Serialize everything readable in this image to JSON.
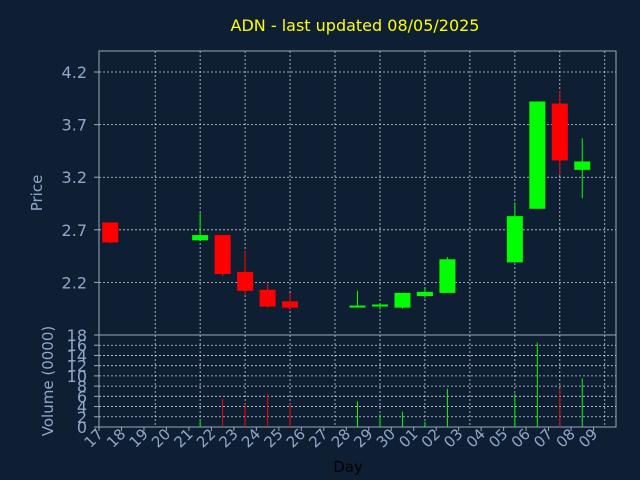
{
  "chart_data": {
    "type": "candlestick",
    "title": "ADN - last updated 08/05/2025",
    "xlabel": "Day",
    "price_panel": {
      "ylabel": "Price",
      "yticks": [
        "2.2",
        "2.7",
        "3.2",
        "3.7",
        "4.2"
      ],
      "ylim": [
        1.7,
        4.4
      ]
    },
    "volume_panel": {
      "ylabel": "Volume (0000)",
      "yticks": [
        "0",
        "2",
        "4",
        "6",
        "8",
        "10",
        "12",
        "14",
        "16",
        "18"
      ],
      "ylim": [
        0,
        18
      ]
    },
    "days": [
      "17",
      "18",
      "19",
      "20",
      "21",
      "22",
      "23",
      "24",
      "25",
      "26",
      "27",
      "28",
      "29",
      "30",
      "01",
      "02",
      "03",
      "04",
      "05",
      "06",
      "07",
      "08",
      "09"
    ],
    "grid": true,
    "colors": {
      "up": "#00ff00",
      "down": "#ff0000",
      "title": "#ffff00",
      "axis_text": "#8fa8c8",
      "background": "#0f1f33"
    },
    "candles": [
      {
        "day": "17",
        "open": 2.77,
        "high": 2.77,
        "low": 2.57,
        "close": 2.58,
        "volume": 0
      },
      {
        "day": "21",
        "open": 2.6,
        "high": 2.87,
        "low": 2.59,
        "close": 2.65,
        "volume": 1.5
      },
      {
        "day": "22",
        "open": 2.65,
        "high": 2.65,
        "low": 2.26,
        "close": 2.28,
        "volume": 5.5
      },
      {
        "day": "23",
        "open": 2.3,
        "high": 2.5,
        "low": 2.09,
        "close": 2.12,
        "volume": 4.5
      },
      {
        "day": "24",
        "open": 2.13,
        "high": 2.19,
        "low": 1.96,
        "close": 1.97,
        "volume": 6.5
      },
      {
        "day": "25",
        "open": 2.02,
        "high": 2.1,
        "low": 1.94,
        "close": 1.96,
        "volume": 4.5
      },
      {
        "day": "28",
        "open": 1.97,
        "high": 2.12,
        "low": 1.97,
        "close": 1.98,
        "volume": 5
      },
      {
        "day": "29",
        "open": 1.98,
        "high": 2.0,
        "low": 1.94,
        "close": 1.99,
        "volume": 2.5
      },
      {
        "day": "30",
        "open": 1.96,
        "high": 2.1,
        "low": 1.95,
        "close": 2.1,
        "volume": 3
      },
      {
        "day": "01",
        "open": 2.07,
        "high": 2.14,
        "low": 2.05,
        "close": 2.11,
        "volume": 1
      },
      {
        "day": "02",
        "open": 2.1,
        "high": 2.44,
        "low": 2.1,
        "close": 2.42,
        "volume": 7.5
      },
      {
        "day": "05",
        "open": 2.39,
        "high": 2.96,
        "low": 2.39,
        "close": 2.83,
        "volume": 6.5
      },
      {
        "day": "06",
        "open": 2.9,
        "high": 3.92,
        "low": 2.9,
        "close": 3.92,
        "volume": 16.5
      },
      {
        "day": "07",
        "open": 3.9,
        "high": 4.02,
        "low": 3.22,
        "close": 3.36,
        "volume": 7.5
      },
      {
        "day": "08",
        "open": 3.27,
        "high": 3.57,
        "low": 3.0,
        "close": 3.35,
        "volume": 9.5
      }
    ]
  }
}
